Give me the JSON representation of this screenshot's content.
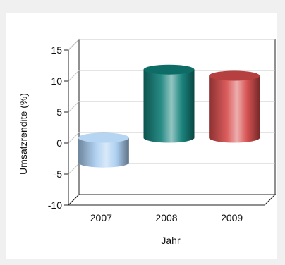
{
  "chart_data": {
    "type": "bar",
    "style": "3d-cylinder",
    "title": "",
    "categories": [
      "2007",
      "2008",
      "2009"
    ],
    "values": [
      -4,
      11,
      10
    ],
    "colors": [
      "#a9cdf0",
      "#117f78",
      "#d64a4a"
    ],
    "xlabel": "Jahr",
    "ylabel": "Umsatzrendite (%)",
    "ylim": [
      -10,
      15
    ],
    "yticks": [
      "15",
      "10",
      "5",
      "0",
      "-5",
      "-10"
    ],
    "grid": true,
    "legend": "none"
  }
}
